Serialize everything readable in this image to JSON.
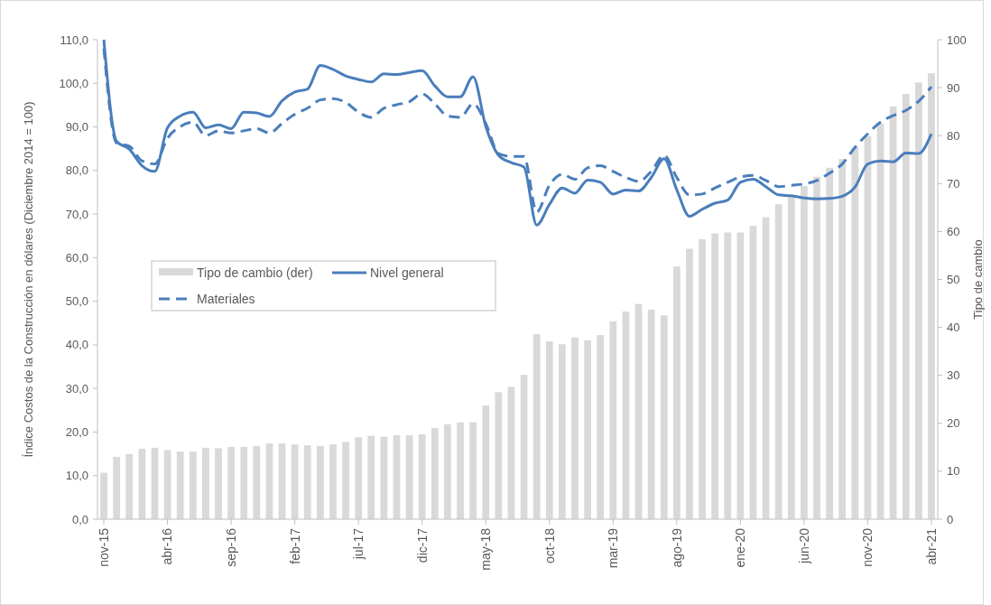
{
  "chart_data": {
    "type": "line",
    "ylabel": "Índice Costos de la Construcción en dólares (Diciembre 2014 = 100)",
    "y2label": "Tipo de cambio",
    "categories": [
      "nov-15",
      null,
      null,
      null,
      null,
      "abr-16",
      null,
      null,
      null,
      null,
      "sep-16",
      null,
      null,
      null,
      null,
      "feb-17",
      null,
      null,
      null,
      null,
      "jul-17",
      null,
      null,
      null,
      null,
      "dic-17",
      null,
      null,
      null,
      null,
      "may-18",
      null,
      null,
      null,
      null,
      "oct-18",
      null,
      null,
      null,
      null,
      "mar-19",
      null,
      null,
      null,
      null,
      "ago-19",
      null,
      null,
      null,
      null,
      "ene-20",
      null,
      null,
      null,
      null,
      "jun-20",
      null,
      null,
      null,
      null,
      "nov-20",
      null,
      null,
      null,
      null,
      "abr-21"
    ],
    "series": [
      {
        "name": "Tipo de cambio (der)",
        "type": "bar",
        "axis": "y2",
        "color": "#d9d9d9",
        "values": [
          9.7,
          13.0,
          13.6,
          14.7,
          14.9,
          14.4,
          14.1,
          14.1,
          14.9,
          14.8,
          15.1,
          15.1,
          15.3,
          15.8,
          15.8,
          15.6,
          15.4,
          15.3,
          15.6,
          16.1,
          17.1,
          17.4,
          17.2,
          17.5,
          17.5,
          17.7,
          19.0,
          19.8,
          20.2,
          20.2,
          23.7,
          26.5,
          27.6,
          30.1,
          38.6,
          37.1,
          36.5,
          37.9,
          37.3,
          38.4,
          41.3,
          43.3,
          44.9,
          43.7,
          42.5,
          52.7,
          56.4,
          58.4,
          59.6,
          59.8,
          59.8,
          61.2,
          63.0,
          65.7,
          67.2,
          69.5,
          71.4,
          73.3,
          75.1,
          77.5,
          79.9,
          82.5,
          86.1,
          88.7,
          91.1,
          93.0
        ]
      },
      {
        "name": "Nivel general",
        "line_style": "solid",
        "color": "#4a7ebb",
        "values": [
          110.0,
          86.7,
          84.9,
          81.1,
          79.8,
          89.8,
          92.5,
          93.4,
          89.8,
          90.5,
          89.6,
          93.4,
          93.2,
          92.4,
          96.0,
          98.0,
          98.7,
          104.1,
          103.2,
          101.7,
          100.9,
          100.3,
          102.2,
          102.0,
          102.5,
          102.9,
          99.4,
          96.9,
          96.9,
          101.5,
          90.1,
          83.5,
          81.8,
          80.8,
          67.5,
          72.2,
          76.0,
          74.8,
          77.8,
          77.3,
          74.6,
          75.5,
          75.3,
          78.4,
          82.7,
          75.6,
          69.5,
          71.1,
          72.5,
          73.2,
          77.3,
          78.0,
          76.3,
          74.4,
          74.2,
          73.7,
          73.5,
          73.6,
          74.1,
          76.2,
          81.5,
          82.2,
          82.0,
          84.0,
          83.9,
          88.4
        ]
      },
      {
        "name": "Materiales",
        "line_style": "dashed",
        "color": "#4a7ebb",
        "values": [
          108.0,
          86.3,
          85.6,
          82.2,
          81.5,
          87.4,
          90.1,
          91.1,
          88.0,
          89.1,
          88.6,
          89.1,
          89.6,
          88.6,
          90.8,
          92.9,
          94.3,
          96.2,
          96.5,
          95.6,
          93.4,
          92.2,
          94.3,
          95.1,
          95.8,
          97.6,
          95.3,
          92.5,
          92.2,
          95.3,
          90.8,
          83.9,
          83.2,
          83.2,
          70.5,
          76.6,
          79.1,
          78.0,
          80.6,
          81.1,
          79.8,
          78.4,
          77.5,
          79.8,
          83.5,
          78.4,
          74.4,
          74.6,
          76.0,
          77.3,
          78.5,
          78.9,
          77.7,
          76.3,
          76.6,
          76.9,
          77.7,
          79.4,
          81.5,
          85.3,
          88.4,
          91.1,
          92.6,
          93.8,
          95.9,
          99.2
        ]
      }
    ],
    "ylim": [
      0,
      110
    ],
    "yticks": [
      {
        "value": 0,
        "label": "0,0"
      },
      {
        "value": 10,
        "label": "10,0"
      },
      {
        "value": 20,
        "label": "20,0"
      },
      {
        "value": 30,
        "label": "30,0"
      },
      {
        "value": 40,
        "label": "40,0"
      },
      {
        "value": 50,
        "label": "50,0"
      },
      {
        "value": 60,
        "label": "60,0"
      },
      {
        "value": 70,
        "label": "70,0"
      },
      {
        "value": 80,
        "label": "80,0"
      },
      {
        "value": 90,
        "label": "90,0"
      },
      {
        "value": 100,
        "label": "100,0"
      },
      {
        "value": 110,
        "label": "110,0"
      }
    ],
    "y2lim": [
      0,
      100
    ],
    "y2ticks": [
      0,
      10,
      20,
      30,
      40,
      50,
      60,
      70,
      80,
      90,
      100
    ],
    "legend": "left",
    "grid": false
  }
}
